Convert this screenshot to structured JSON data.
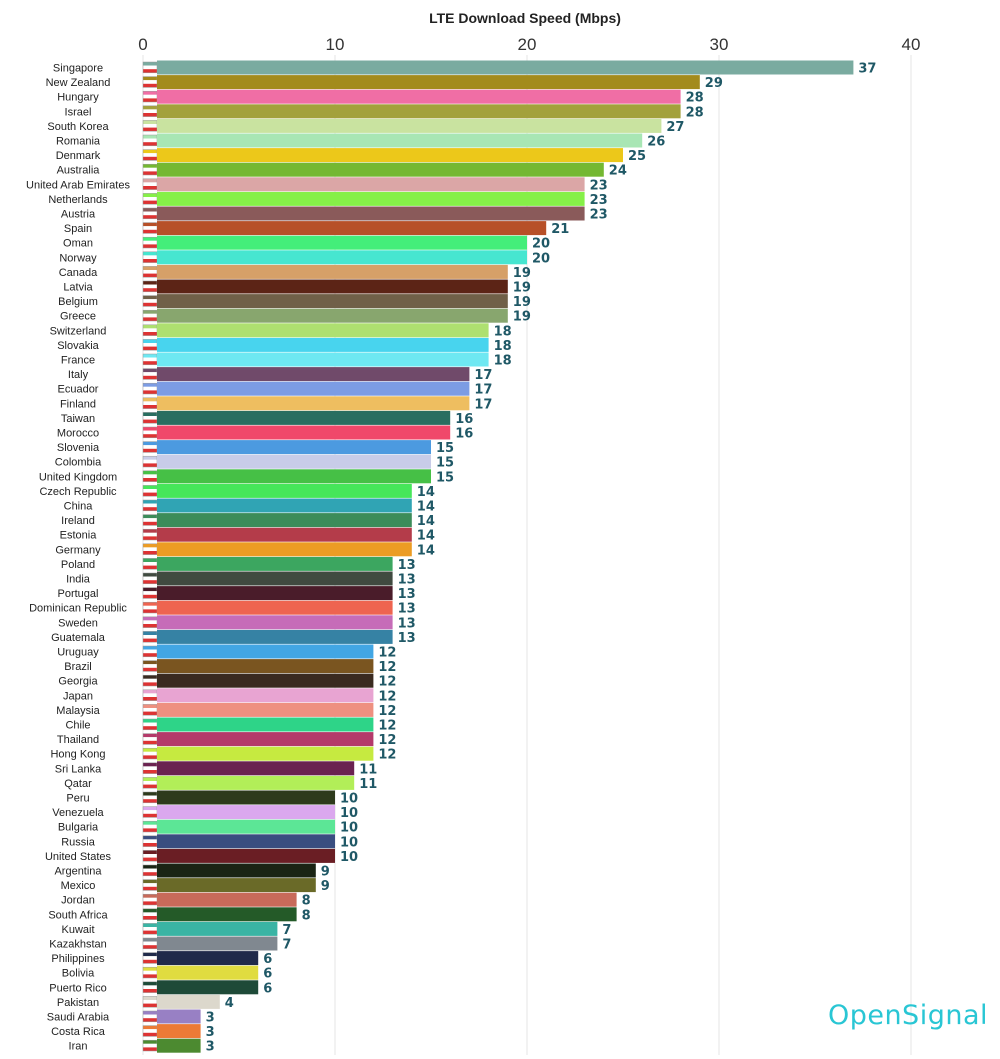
{
  "brand": "OpenSignal",
  "chart_data": {
    "type": "bar",
    "orientation": "horizontal",
    "title": "LTE Download Speed (Mbps)",
    "xlim": [
      0,
      40
    ],
    "x_ticks": [
      0,
      10,
      20,
      30,
      40
    ],
    "grid": true,
    "bars": [
      {
        "country": "Singapore",
        "value": 37,
        "color": "#7aaba0"
      },
      {
        "country": "New Zealand",
        "value": 29,
        "color": "#a38b1c"
      },
      {
        "country": "Hungary",
        "value": 28,
        "color": "#f06ea5"
      },
      {
        "country": "Israel",
        "value": 28,
        "color": "#a3a13c"
      },
      {
        "country": "South Korea",
        "value": 27,
        "color": "#c9e3a0"
      },
      {
        "country": "Romania",
        "value": 26,
        "color": "#a8e6b4"
      },
      {
        "country": "Denmark",
        "value": 25,
        "color": "#ecc81a"
      },
      {
        "country": "Australia",
        "value": 24,
        "color": "#74b832"
      },
      {
        "country": "United Arab Emirates",
        "value": 23,
        "color": "#dba6a6"
      },
      {
        "country": "Netherlands",
        "value": 23,
        "color": "#86f048"
      },
      {
        "country": "Austria",
        "value": 23,
        "color": "#8a5a5a"
      },
      {
        "country": "Spain",
        "value": 21,
        "color": "#b75028"
      },
      {
        "country": "Oman",
        "value": 20,
        "color": "#44ee7a"
      },
      {
        "country": "Norway",
        "value": 20,
        "color": "#46e6d0"
      },
      {
        "country": "Canada",
        "value": 19,
        "color": "#d6a068"
      },
      {
        "country": "Latvia",
        "value": 19,
        "color": "#5c2416"
      },
      {
        "country": "Belgium",
        "value": 19,
        "color": "#706048"
      },
      {
        "country": "Greece",
        "value": 19,
        "color": "#88a66e"
      },
      {
        "country": "Switzerland",
        "value": 18,
        "color": "#aee070"
      },
      {
        "country": "Slovakia",
        "value": 18,
        "color": "#48d4ee"
      },
      {
        "country": "France",
        "value": 18,
        "color": "#6ee8f2"
      },
      {
        "country": "Italy",
        "value": 17,
        "color": "#704a6a"
      },
      {
        "country": "Ecuador",
        "value": 17,
        "color": "#7c9ce4"
      },
      {
        "country": "Finland",
        "value": 17,
        "color": "#eebe60"
      },
      {
        "country": "Taiwan",
        "value": 16,
        "color": "#2a6e60"
      },
      {
        "country": "Morocco",
        "value": 16,
        "color": "#f0486a"
      },
      {
        "country": "Slovenia",
        "value": 15,
        "color": "#4c9ae0"
      },
      {
        "country": "Colombia",
        "value": 15,
        "color": "#c8cce8"
      },
      {
        "country": "United Kingdom",
        "value": 15,
        "color": "#46c046"
      },
      {
        "country": "Czech Republic",
        "value": 14,
        "color": "#46e65a"
      },
      {
        "country": "China",
        "value": 14,
        "color": "#30a4b4"
      },
      {
        "country": "Ireland",
        "value": 14,
        "color": "#3c8c5a"
      },
      {
        "country": "Estonia",
        "value": 14,
        "color": "#b43c4a"
      },
      {
        "country": "Germany",
        "value": 14,
        "color": "#ec9c24"
      },
      {
        "country": "Poland",
        "value": 13,
        "color": "#3ca660"
      },
      {
        "country": "India",
        "value": 13,
        "color": "#404a40"
      },
      {
        "country": "Portugal",
        "value": 13,
        "color": "#4a1c2a"
      },
      {
        "country": "Dominican Republic",
        "value": 13,
        "color": "#ee6450"
      },
      {
        "country": "Sweden",
        "value": 13,
        "color": "#c66cb8"
      },
      {
        "country": "Guatemala",
        "value": 13,
        "color": "#3682a4"
      },
      {
        "country": "Uruguay",
        "value": 12,
        "color": "#42a6e4"
      },
      {
        "country": "Brazil",
        "value": 12,
        "color": "#7a5520"
      },
      {
        "country": "Georgia",
        "value": 12,
        "color": "#3a2a20"
      },
      {
        "country": "Japan",
        "value": 12,
        "color": "#e8a4d2"
      },
      {
        "country": "Malaysia",
        "value": 12,
        "color": "#ee9080"
      },
      {
        "country": "Chile",
        "value": 12,
        "color": "#2ed488"
      },
      {
        "country": "Thailand",
        "value": 12,
        "color": "#b43a6a"
      },
      {
        "country": "Hong Kong",
        "value": 12,
        "color": "#c6ea40"
      },
      {
        "country": "Sri Lanka",
        "value": 11,
        "color": "#6a2250"
      },
      {
        "country": "Qatar",
        "value": 11,
        "color": "#b2ee58"
      },
      {
        "country": "Peru",
        "value": 10,
        "color": "#2e3a1c"
      },
      {
        "country": "Venezuela",
        "value": 10,
        "color": "#dba8ee"
      },
      {
        "country": "Bulgaria",
        "value": 10,
        "color": "#5ce696"
      },
      {
        "country": "Russia",
        "value": 10,
        "color": "#3a4e80"
      },
      {
        "country": "United States",
        "value": 10,
        "color": "#6a1e24"
      },
      {
        "country": "Argentina",
        "value": 9,
        "color": "#1a2414"
      },
      {
        "country": "Mexico",
        "value": 9,
        "color": "#6a6a28"
      },
      {
        "country": "Jordan",
        "value": 8,
        "color": "#c86a5a"
      },
      {
        "country": "South Africa",
        "value": 8,
        "color": "#245a28"
      },
      {
        "country": "Kuwait",
        "value": 7,
        "color": "#3ab4a4"
      },
      {
        "country": "Kazakhstan",
        "value": 7,
        "color": "#808890"
      },
      {
        "country": "Philippines",
        "value": 6,
        "color": "#202a4a"
      },
      {
        "country": "Bolivia",
        "value": 6,
        "color": "#e0dc40"
      },
      {
        "country": "Puerto Rico",
        "value": 6,
        "color": "#1e4a38"
      },
      {
        "country": "Pakistan",
        "value": 4,
        "color": "#dcd8cc"
      },
      {
        "country": "Saudi Arabia",
        "value": 3,
        "color": "#9880c4"
      },
      {
        "country": "Costa Rica",
        "value": 3,
        "color": "#ec7a36"
      },
      {
        "country": "Iran",
        "value": 3,
        "color": "#4c8a30"
      }
    ]
  }
}
